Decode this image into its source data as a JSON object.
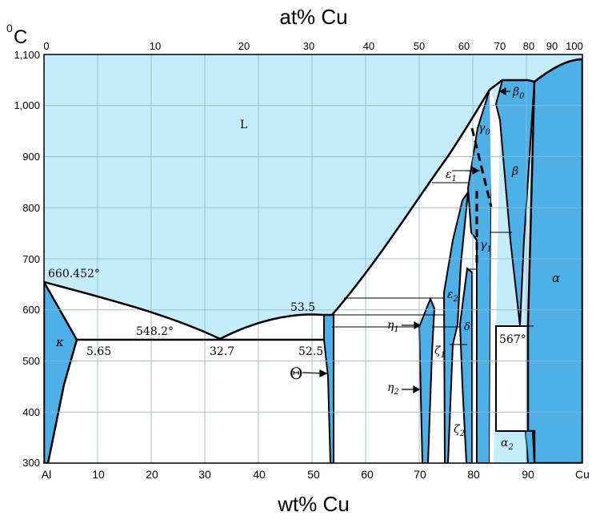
{
  "top_axis": {
    "title": "at% Cu",
    "ticks": [
      "0",
      "10",
      "20",
      "30",
      "40",
      "50",
      "60",
      "70",
      "80",
      "90",
      "100"
    ]
  },
  "bottom_axis": {
    "title": "wt% Cu",
    "ticks": [
      "Al",
      "10",
      "20",
      "30",
      "40",
      "50",
      "60",
      "70",
      "80",
      "90",
      "Cu"
    ]
  },
  "left_axis": {
    "unit": "°C",
    "unit_sup": "0",
    "unit_main": "C",
    "ticks": [
      "1,100",
      "1,000",
      "900",
      "800",
      "700",
      "600",
      "500",
      "400",
      "300"
    ]
  },
  "labels": {
    "liquid": "L",
    "al_melting": "660.452°",
    "eutectic_temp": "548.2°",
    "kappa_solubility": "5.65",
    "eutectic_comp": "32.7",
    "theta_left": "52.5",
    "theta_top": "53.5",
    "beta_eutectoid": "567°",
    "kappa": "κ",
    "theta": "Θ",
    "beta0": "β",
    "beta0_sub": "0",
    "beta": "β",
    "gamma0": "γ",
    "gamma0_sub": "0",
    "gamma1": "γ",
    "gamma1_sub": "1",
    "epsilon1": "ε",
    "epsilon1_sub": "1",
    "epsilon2": "ε",
    "epsilon2_sub": "2",
    "eta1": "η",
    "eta1_sub": "1",
    "eta2": "η",
    "eta2_sub": "2",
    "zeta1": "ζ",
    "zeta1_sub": "1",
    "zeta2": "ζ",
    "zeta2_sub": "2",
    "delta": "δ",
    "alpha": "α",
    "alpha2": "α",
    "alpha2_sub": "2"
  },
  "colors": {
    "liquid_region": "#c5ecfb",
    "solid_solution": "#4fb0e8",
    "two_phase": "#ffffff",
    "grid": "#8fb8cc",
    "boundary": "#000000"
  }
}
